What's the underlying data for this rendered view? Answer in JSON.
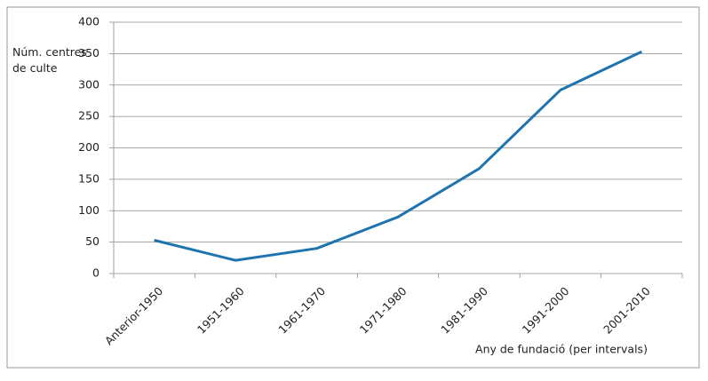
{
  "chart_data": {
    "type": "line",
    "y_label": "Núm. centres de culte",
    "x_label": "Any de fundació (per intervals)",
    "categories": [
      "Anterior-1950",
      "1951-1960",
      "1961-1970",
      "1971-1980",
      "1981-1990",
      "1991-2000",
      "2001-2010"
    ],
    "values": [
      53,
      21,
      40,
      90,
      167,
      292,
      353
    ],
    "color": "#1f74b0",
    "ylim": [
      0,
      400
    ],
    "yticks": [
      0,
      50,
      100,
      150,
      200,
      250,
      300,
      350,
      400
    ],
    "grid": true
  }
}
